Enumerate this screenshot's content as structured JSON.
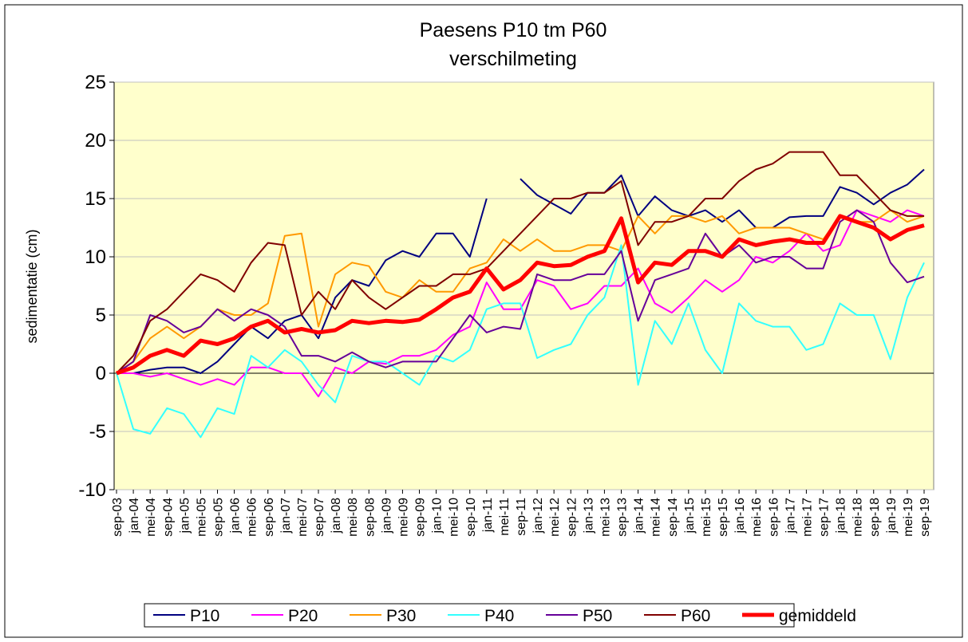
{
  "chart_data": {
    "type": "line",
    "title": "Paesens P10 tm P60",
    "subtitle": "verschilmeting",
    "y_label": "sedimentatie (cm)",
    "categories": [
      "sep-03",
      "jan-04",
      "mei-04",
      "sep-04",
      "jan-05",
      "mei-05",
      "sep-05",
      "jan-06",
      "mei-06",
      "sep-06",
      "jan-07",
      "mei-07",
      "sep-07",
      "jan-08",
      "mei-08",
      "sep-08",
      "jan-09",
      "mei-09",
      "sep-09",
      "jan-10",
      "mei-10",
      "sep-10",
      "jan-11",
      "mei-11",
      "sep-11",
      "jan-12",
      "mei-12",
      "sep-12",
      "jan-13",
      "mei-13",
      "sep-13",
      "jan-14",
      "mei-14",
      "sep-14",
      "jan-15",
      "mei-15",
      "sep-15",
      "jan-16",
      "mei-16",
      "sep-16",
      "jan-17",
      "mei-17",
      "sep-17",
      "jan-18",
      "mei-18",
      "sep-18",
      "jan-19",
      "mei-19",
      "sep-19"
    ],
    "series": [
      {
        "name": "P10",
        "color": "#000080",
        "width": 2,
        "values": [
          0,
          0,
          0.3,
          0.5,
          0.5,
          0,
          1,
          2.5,
          4,
          3,
          4.5,
          5,
          3,
          6.5,
          8,
          7.5,
          9.7,
          10.5,
          10,
          12,
          12,
          10,
          15,
          null,
          16.7,
          15.3,
          14.5,
          13.7,
          15.5,
          15.5,
          17,
          13.5,
          15.2,
          14,
          13.5,
          14,
          13,
          14,
          12.5,
          12.5,
          13.4,
          13.5,
          13.5,
          16,
          15.5,
          14.5,
          15.5,
          16.2,
          17.5
        ]
      },
      {
        "name": "P20",
        "color": "#ff00ff",
        "width": 2,
        "values": [
          0,
          0,
          -0.3,
          0,
          -0.5,
          -1,
          -0.5,
          -1,
          0.5,
          0.5,
          0,
          0,
          -2,
          0.5,
          0,
          1,
          0.8,
          1.5,
          1.5,
          2,
          3.3,
          4,
          7.8,
          5.5,
          5.5,
          8,
          7.5,
          5.5,
          6,
          7.5,
          7.5,
          9,
          6,
          5.2,
          6.5,
          8,
          7,
          8,
          10,
          9.5,
          10.5,
          12,
          10.5,
          11,
          14,
          13.5,
          13,
          14,
          13.5
        ]
      },
      {
        "name": "P30",
        "color": "#ff9900",
        "width": 2,
        "values": [
          0,
          1,
          3,
          4,
          3,
          4,
          5.5,
          5,
          5,
          6,
          11.8,
          12,
          4,
          8.5,
          9.5,
          9.2,
          7,
          6.5,
          8,
          7,
          7,
          9,
          9.5,
          11.5,
          10.5,
          11.5,
          10.5,
          10.5,
          11,
          11,
          10.5,
          13.5,
          12,
          13.5,
          13.5,
          13,
          13.5,
          12,
          12.5,
          12.5,
          12.5,
          12,
          11.5,
          13.5,
          13,
          13,
          14,
          13,
          13.5
        ]
      },
      {
        "name": "P40",
        "color": "#33ffff",
        "width": 2,
        "values": [
          0,
          -4.8,
          -5.2,
          -3,
          -3.5,
          -5.5,
          -3,
          -3.5,
          1.5,
          0.5,
          2,
          1,
          -1,
          -2.5,
          1.5,
          1,
          1,
          0,
          -1,
          1.5,
          1,
          2,
          5.5,
          6,
          6,
          1.3,
          2,
          2.5,
          5,
          6.5,
          11,
          -1,
          4.5,
          2.5,
          6,
          2,
          0,
          6,
          4.5,
          4,
          4,
          2,
          2.5,
          6,
          5,
          5,
          1.2,
          6.5,
          9.5
        ]
      },
      {
        "name": "P50",
        "color": "#660099",
        "width": 2,
        "values": [
          0,
          1,
          5,
          4.5,
          3.5,
          4,
          5.5,
          4.5,
          5.5,
          5,
          4,
          1.5,
          1.5,
          1,
          1.8,
          1,
          0.5,
          1,
          1,
          1,
          3,
          5,
          3.5,
          4,
          3.8,
          8.5,
          8,
          8,
          8.5,
          8.5,
          10.5,
          4.5,
          8,
          8.5,
          9,
          12,
          10,
          11,
          9.5,
          10,
          10,
          9,
          9,
          13,
          14,
          13,
          9.5,
          7.8,
          8.3
        ]
      },
      {
        "name": "P60",
        "color": "#800000",
        "width": 2,
        "values": [
          0,
          1.5,
          4.5,
          5.5,
          7,
          8.5,
          8,
          7,
          9.5,
          11.2,
          11,
          5,
          7,
          5.5,
          8,
          6.5,
          5.5,
          6.5,
          7.5,
          7.5,
          8.5,
          8.5,
          9,
          10.5,
          12,
          13.5,
          15,
          15,
          15.5,
          15.5,
          16.5,
          11,
          13,
          13,
          13.5,
          15,
          15,
          16.5,
          17.5,
          18,
          19,
          19,
          19,
          17,
          17,
          15.5,
          14,
          13.5,
          13.5
        ]
      },
      {
        "name": "gemiddeld",
        "color": "#ff0000",
        "width": 5,
        "values": [
          0,
          0.5,
          1.5,
          2,
          1.5,
          2.8,
          2.5,
          3,
          4,
          4.5,
          3.5,
          3.8,
          3.5,
          3.7,
          4.5,
          4.3,
          4.5,
          4.4,
          4.6,
          5.5,
          6.5,
          7,
          9,
          7.2,
          8,
          9.5,
          9.2,
          9.3,
          10,
          10.5,
          13.3,
          7.8,
          9.5,
          9.3,
          10.5,
          10.5,
          10,
          11.5,
          11,
          11.3,
          11.5,
          11.2,
          11.2,
          13.5,
          13,
          12.5,
          11.5,
          12.3,
          12.7
        ]
      }
    ],
    "ylim": [
      -10,
      25
    ],
    "yticks": [
      -10,
      -5,
      0,
      5,
      10,
      15,
      20,
      25
    ],
    "grid": true,
    "plot_background": "#ffffcc",
    "legend": "bottom"
  }
}
